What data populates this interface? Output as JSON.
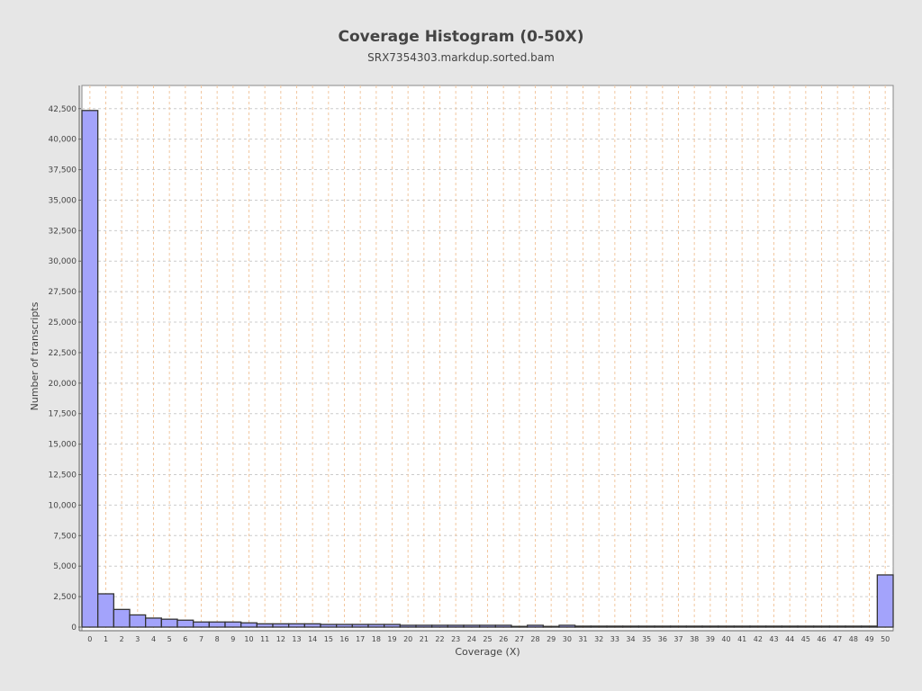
{
  "chart_data": {
    "type": "bar",
    "title": "Coverage Histogram (0-50X)",
    "subtitle": "SRX7354303.markdup.sorted.bam",
    "xlabel": "Coverage (X)",
    "ylabel": "Number of transcripts",
    "categories": [
      0,
      1,
      2,
      3,
      4,
      5,
      6,
      7,
      8,
      9,
      10,
      11,
      12,
      13,
      14,
      15,
      16,
      17,
      18,
      19,
      20,
      21,
      22,
      23,
      24,
      25,
      26,
      27,
      28,
      29,
      30,
      31,
      32,
      33,
      34,
      35,
      36,
      37,
      38,
      39,
      40,
      41,
      42,
      43,
      44,
      45,
      46,
      47,
      48,
      49,
      50
    ],
    "values": [
      42350,
      2730,
      1450,
      1000,
      740,
      650,
      570,
      420,
      420,
      420,
      350,
      270,
      270,
      270,
      270,
      220,
      220,
      220,
      220,
      220,
      150,
      150,
      150,
      150,
      150,
      150,
      150,
      60,
      150,
      60,
      150,
      80,
      80,
      80,
      80,
      80,
      80,
      80,
      80,
      80,
      80,
      80,
      80,
      80,
      80,
      80,
      80,
      80,
      80,
      80,
      4280
    ],
    "xlim": [
      -0.5,
      50.5
    ],
    "ylim": [
      0,
      44400
    ],
    "yticks": [
      0,
      2500,
      5000,
      7500,
      10000,
      12500,
      15000,
      17500,
      20000,
      22500,
      25000,
      27500,
      30000,
      32500,
      35000,
      37500,
      40000,
      42500
    ],
    "grid": true,
    "colors": {
      "bar_fill": "#a3a3fb",
      "bar_edge": "#333333",
      "background": "#e6e6e6",
      "plot_bg": "#ffffff",
      "vgrid": "#f2c7a0",
      "hgrid": "#cccccc"
    }
  }
}
